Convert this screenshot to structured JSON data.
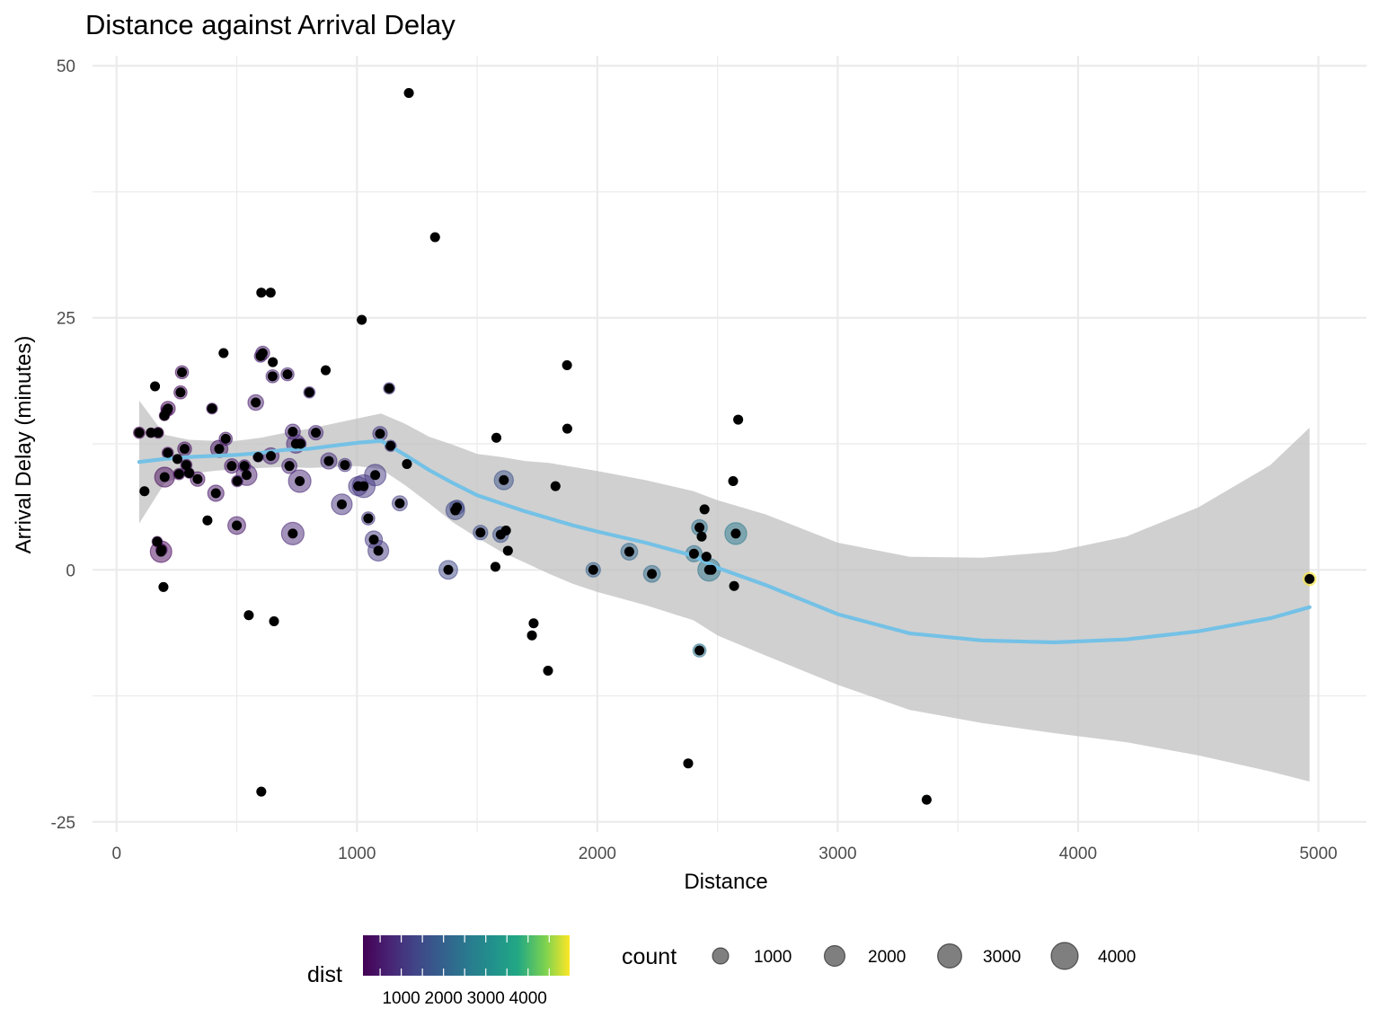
{
  "chart_data": {
    "type": "scatter",
    "title": "Distance against Arrival Delay",
    "xlabel": "Distance",
    "ylabel": "Arrival Delay (minutes)",
    "xlim": [
      -100,
      5200
    ],
    "ylim": [
      -26,
      51
    ],
    "x_ticks": [
      0,
      1000,
      2000,
      3000,
      4000,
      5000
    ],
    "y_ticks": [
      -25,
      0,
      25,
      50
    ],
    "grid": true,
    "colors": {
      "point": "#000000",
      "smooth": "#74c1e6",
      "ribbon": "#bebebe",
      "grid": "#ebebeb"
    },
    "points": [
      {
        "x": 94,
        "y": 13.6,
        "count": 300
      },
      {
        "x": 116,
        "y": 7.8,
        "count": 100
      },
      {
        "x": 143,
        "y": 13.6,
        "count": 150
      },
      {
        "x": 160,
        "y": 18.2,
        "count": 100
      },
      {
        "x": 169,
        "y": 2.8,
        "count": 200
      },
      {
        "x": 173,
        "y": 13.6,
        "count": 250
      },
      {
        "x": 185,
        "y": 1.8,
        "count": 2200
      },
      {
        "x": 187,
        "y": 2.0,
        "count": 300
      },
      {
        "x": 195,
        "y": -1.7,
        "count": 100
      },
      {
        "x": 200,
        "y": 9.2,
        "count": 1800
      },
      {
        "x": 199,
        "y": 15.3,
        "count": 200
      },
      {
        "x": 209,
        "y": 15.8,
        "count": 300
      },
      {
        "x": 214,
        "y": 16.0,
        "count": 700
      },
      {
        "x": 213,
        "y": 11.6,
        "count": 300
      },
      {
        "x": 253,
        "y": 11.0,
        "count": 100
      },
      {
        "x": 260,
        "y": 9.5,
        "count": 300
      },
      {
        "x": 266,
        "y": 17.6,
        "count": 500
      },
      {
        "x": 272,
        "y": 19.6,
        "count": 500
      },
      {
        "x": 283,
        "y": 12.0,
        "count": 600
      },
      {
        "x": 290,
        "y": 10.4,
        "count": 300
      },
      {
        "x": 302,
        "y": 9.6,
        "count": 200
      },
      {
        "x": 337,
        "y": 9.0,
        "count": 700
      },
      {
        "x": 378,
        "y": 4.9,
        "count": 100
      },
      {
        "x": 397,
        "y": 16.0,
        "count": 250
      },
      {
        "x": 413,
        "y": 7.6,
        "count": 1000
      },
      {
        "x": 427,
        "y": 12.0,
        "count": 1200
      },
      {
        "x": 445,
        "y": 21.5,
        "count": 100
      },
      {
        "x": 454,
        "y": 13.0,
        "count": 500
      },
      {
        "x": 479,
        "y": 10.3,
        "count": 700
      },
      {
        "x": 500,
        "y": 4.4,
        "count": 1300
      },
      {
        "x": 502,
        "y": 8.8,
        "count": 300
      },
      {
        "x": 532,
        "y": 10.3,
        "count": 400
      },
      {
        "x": 541,
        "y": 9.4,
        "count": 2000
      },
      {
        "x": 550,
        "y": -4.5,
        "count": 100
      },
      {
        "x": 579,
        "y": 16.6,
        "count": 900
      },
      {
        "x": 589,
        "y": 11.2,
        "count": 200
      },
      {
        "x": 599,
        "y": 21.2,
        "count": 400
      },
      {
        "x": 608,
        "y": 21.5,
        "count": 600
      },
      {
        "x": 602,
        "y": 27.5,
        "count": 100
      },
      {
        "x": 602,
        "y": -22.0,
        "count": 100
      },
      {
        "x": 641,
        "y": 27.5,
        "count": 100
      },
      {
        "x": 642,
        "y": 11.3,
        "count": 1000
      },
      {
        "x": 649,
        "y": 19.2,
        "count": 500
      },
      {
        "x": 650,
        "y": 20.6,
        "count": 100
      },
      {
        "x": 655,
        "y": -5.1,
        "count": 100
      },
      {
        "x": 711,
        "y": 19.4,
        "count": 500
      },
      {
        "x": 719,
        "y": 10.3,
        "count": 800
      },
      {
        "x": 733,
        "y": 3.6,
        "count": 2500
      },
      {
        "x": 733,
        "y": 13.7,
        "count": 800
      },
      {
        "x": 746,
        "y": 12.5,
        "count": 1500
      },
      {
        "x": 762,
        "y": 8.8,
        "count": 2500
      },
      {
        "x": 765,
        "y": 12.5,
        "count": 300
      },
      {
        "x": 802,
        "y": 17.6,
        "count": 300
      },
      {
        "x": 829,
        "y": 13.6,
        "count": 700
      },
      {
        "x": 870,
        "y": 19.8,
        "count": 100
      },
      {
        "x": 883,
        "y": 10.8,
        "count": 1000
      },
      {
        "x": 937,
        "y": 6.5,
        "count": 2000
      },
      {
        "x": 950,
        "y": 10.4,
        "count": 500
      },
      {
        "x": 1005,
        "y": 8.3,
        "count": 1600
      },
      {
        "x": 1020,
        "y": 24.8,
        "count": 100
      },
      {
        "x": 1028,
        "y": 8.3,
        "count": 2600
      },
      {
        "x": 1047,
        "y": 5.1,
        "count": 500
      },
      {
        "x": 1070,
        "y": 3.0,
        "count": 1200
      },
      {
        "x": 1076,
        "y": 9.4,
        "count": 2200
      },
      {
        "x": 1089,
        "y": 1.9,
        "count": 2000
      },
      {
        "x": 1096,
        "y": 13.5,
        "count": 700
      },
      {
        "x": 1134,
        "y": 18.0,
        "count": 300
      },
      {
        "x": 1140,
        "y": 12.3,
        "count": 300
      },
      {
        "x": 1178,
        "y": 6.6,
        "count": 800
      },
      {
        "x": 1208,
        "y": 10.5,
        "count": 100
      },
      {
        "x": 1216,
        "y": 47.3,
        "count": 100
      },
      {
        "x": 1325,
        "y": 33.0,
        "count": 100
      },
      {
        "x": 1380,
        "y": 0.0,
        "count": 1500
      },
      {
        "x": 1409,
        "y": 5.9,
        "count": 1500
      },
      {
        "x": 1416,
        "y": 6.2,
        "count": 700
      },
      {
        "x": 1514,
        "y": 3.7,
        "count": 700
      },
      {
        "x": 1576,
        "y": 0.3,
        "count": 100
      },
      {
        "x": 1580,
        "y": 13.1,
        "count": 100
      },
      {
        "x": 1598,
        "y": 3.5,
        "count": 900
      },
      {
        "x": 1611,
        "y": 8.9,
        "count": 1600
      },
      {
        "x": 1620,
        "y": 3.9,
        "count": 100
      },
      {
        "x": 1628,
        "y": 1.9,
        "count": 100
      },
      {
        "x": 1728,
        "y": -6.5,
        "count": 100
      },
      {
        "x": 1735,
        "y": -5.3,
        "count": 100
      },
      {
        "x": 1795,
        "y": -10.0,
        "count": 100
      },
      {
        "x": 1826,
        "y": 8.3,
        "count": 100
      },
      {
        "x": 1874,
        "y": 20.3,
        "count": 100
      },
      {
        "x": 1875,
        "y": 14.0,
        "count": 100
      },
      {
        "x": 1983,
        "y": 0.0,
        "count": 700
      },
      {
        "x": 2133,
        "y": 1.8,
        "count": 1100
      },
      {
        "x": 2227,
        "y": -0.4,
        "count": 1100
      },
      {
        "x": 2378,
        "y": -19.2,
        "count": 100
      },
      {
        "x": 2402,
        "y": 1.6,
        "count": 1000
      },
      {
        "x": 2425,
        "y": -8.0,
        "count": 500
      },
      {
        "x": 2425,
        "y": 4.2,
        "count": 900
      },
      {
        "x": 2434,
        "y": 3.3,
        "count": 100
      },
      {
        "x": 2446,
        "y": 6.0,
        "count": 100
      },
      {
        "x": 2454,
        "y": 1.3,
        "count": 100
      },
      {
        "x": 2465,
        "y": 0.0,
        "count": 2500
      },
      {
        "x": 2475,
        "y": 0.0,
        "count": 100
      },
      {
        "x": 2565,
        "y": 8.8,
        "count": 100
      },
      {
        "x": 2569,
        "y": -1.6,
        "count": 100
      },
      {
        "x": 2576,
        "y": 3.6,
        "count": 2300
      },
      {
        "x": 2586,
        "y": 14.9,
        "count": 100
      },
      {
        "x": 3370,
        "y": -22.8,
        "count": 100
      },
      {
        "x": 4963,
        "y": -0.9,
        "count": 500
      }
    ],
    "smooth": {
      "x": [
        94,
        200,
        300,
        400,
        500,
        600,
        700,
        800,
        900,
        1000,
        1100,
        1200,
        1300,
        1400,
        1500,
        1600,
        1700,
        1800,
        1900,
        2000,
        2200,
        2400,
        2500,
        2700,
        3000,
        3300,
        3600,
        3900,
        4200,
        4500,
        4800,
        4963
      ],
      "y": [
        10.7,
        11.0,
        11.2,
        11.3,
        11.4,
        11.6,
        11.9,
        12.0,
        12.3,
        12.6,
        12.8,
        11.4,
        9.9,
        8.6,
        7.4,
        6.6,
        5.8,
        5.1,
        4.4,
        3.8,
        2.7,
        1.4,
        0.2,
        -1.5,
        -4.4,
        -6.3,
        -7.0,
        -7.2,
        -6.9,
        -6.1,
        -4.8,
        -3.7
      ],
      "lower": [
        4.6,
        8.6,
        9.5,
        9.8,
        10.0,
        10.1,
        10.2,
        10.1,
        10.2,
        10.3,
        10.0,
        8.4,
        6.6,
        4.7,
        3.2,
        1.8,
        0.7,
        -0.4,
        -1.4,
        -2.2,
        -3.5,
        -5.0,
        -6.5,
        -8.5,
        -11.4,
        -13.9,
        -15.2,
        -16.2,
        -17.1,
        -18.4,
        -20.0,
        -21.0
      ],
      "upper": [
        16.8,
        13.4,
        12.9,
        12.8,
        12.8,
        13.1,
        13.6,
        14.0,
        14.5,
        15.0,
        15.5,
        14.5,
        13.2,
        12.4,
        11.5,
        11.2,
        10.8,
        10.6,
        10.2,
        9.8,
        8.9,
        7.8,
        6.9,
        5.5,
        2.7,
        1.3,
        1.2,
        1.8,
        3.3,
        6.2,
        10.4,
        14.1
      ]
    },
    "legends": {
      "color": {
        "title": "dist",
        "labels": [
          "1000",
          "2000",
          "3000",
          "4000"
        ],
        "values": [
          1000,
          2000,
          3000,
          4000
        ],
        "range": [
          94,
          4983
        ]
      },
      "size": {
        "title": "count",
        "labels": [
          "1000",
          "2000",
          "3000",
          "4000"
        ],
        "values": [
          1000,
          2000,
          3000,
          4000
        ]
      }
    }
  }
}
